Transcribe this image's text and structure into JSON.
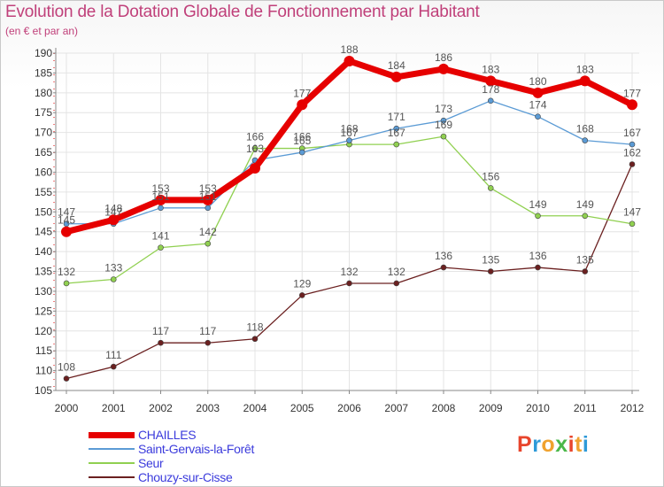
{
  "title": "Evolution de la Dotation Globale de Fonctionnement par Habitant",
  "subtitle": "(en € et par an)",
  "logo": {
    "letters": [
      "P",
      "r",
      "o",
      "x",
      "i",
      "t",
      "i"
    ],
    "colors": [
      "#e8452c",
      "#2e9ad8",
      "#f0a22e",
      "#4bb84a",
      "#e8452c",
      "#f0a22e",
      "#2e9ad8"
    ]
  },
  "chart_data": {
    "type": "line",
    "title": "Evolution de la Dotation Globale de Fonctionnement par Habitant",
    "xlabel": "",
    "ylabel": "(en € et par an)",
    "x": [
      "2000",
      "2001",
      "2002",
      "2003",
      "2004",
      "2005",
      "2006",
      "2007",
      "2008",
      "2009",
      "2010",
      "2011",
      "2012"
    ],
    "ylim": [
      105,
      190
    ],
    "yticks": [
      105,
      110,
      115,
      120,
      125,
      130,
      135,
      140,
      145,
      150,
      155,
      160,
      165,
      170,
      175,
      180,
      185,
      190
    ],
    "grid": true,
    "series": [
      {
        "name": "CHAILLES",
        "color": "#e60000",
        "values": [
          145,
          148,
          153,
          153,
          161,
          177,
          188,
          184,
          186,
          183,
          180,
          183,
          177
        ],
        "labels": [
          "145",
          "148",
          "153",
          "153",
          "",
          "177",
          "188",
          "184",
          "186",
          "183",
          "180",
          "183",
          "177"
        ]
      },
      {
        "name": "Saint-Gervais-la-Forêt",
        "color": "#5b9bd5",
        "values": [
          147,
          147,
          151,
          151,
          163,
          165,
          168,
          171,
          173,
          178,
          174,
          168,
          167
        ],
        "labels": [
          "147",
          "147",
          "151",
          "151",
          "163",
          "165",
          "168",
          "171",
          "173",
          "178",
          "174",
          "168",
          "167"
        ]
      },
      {
        "name": "Seur",
        "color": "#90d050",
        "values": [
          132,
          133,
          141,
          142,
          166,
          166,
          167,
          167,
          169,
          156,
          149,
          149,
          147
        ],
        "labels": [
          "132",
          "133",
          "141",
          "142",
          "166",
          "166",
          "167",
          "167",
          "169",
          "156",
          "149",
          "149",
          "147"
        ]
      },
      {
        "name": "Chouzy-sur-Cisse",
        "color": "#6b2020",
        "values": [
          108,
          111,
          117,
          117,
          118,
          129,
          132,
          132,
          136,
          135,
          136,
          135,
          162
        ],
        "labels": [
          "108",
          "111",
          "117",
          "117",
          "118",
          "129",
          "132",
          "132",
          "136",
          "135",
          "136",
          "135",
          "162"
        ]
      }
    ]
  }
}
